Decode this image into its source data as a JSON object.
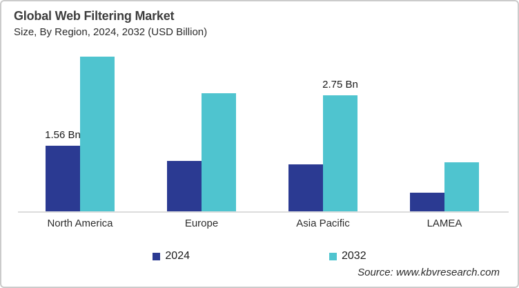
{
  "chart_data": {
    "type": "bar",
    "title": "Global Web Filtering Market",
    "subtitle": "Size, By Region, 2024, 2032 (USD Billion)",
    "unit": "USD Billion",
    "categories": [
      "North America",
      "Europe",
      "Asia Pacific",
      "LAMEA"
    ],
    "series": [
      {
        "name": "2024",
        "color": "#2B3A92",
        "values": [
          1.56,
          1.2,
          1.12,
          0.44
        ],
        "value_labels": [
          "1.56 Bn",
          "",
          "",
          ""
        ]
      },
      {
        "name": "2032",
        "color": "#4FC4CF",
        "values": [
          3.67,
          2.8,
          2.75,
          1.17
        ],
        "value_labels": [
          "",
          "",
          "2.75 Bn",
          ""
        ]
      }
    ],
    "axis": {
      "x_type": "category",
      "y_axis_visible": false,
      "gridlines": false,
      "ylim": [
        0,
        4
      ]
    },
    "legend_position": "bottom-center",
    "axis_line_color": "#DCDCDC",
    "source": "Source: www.kbvresearch.com"
  }
}
